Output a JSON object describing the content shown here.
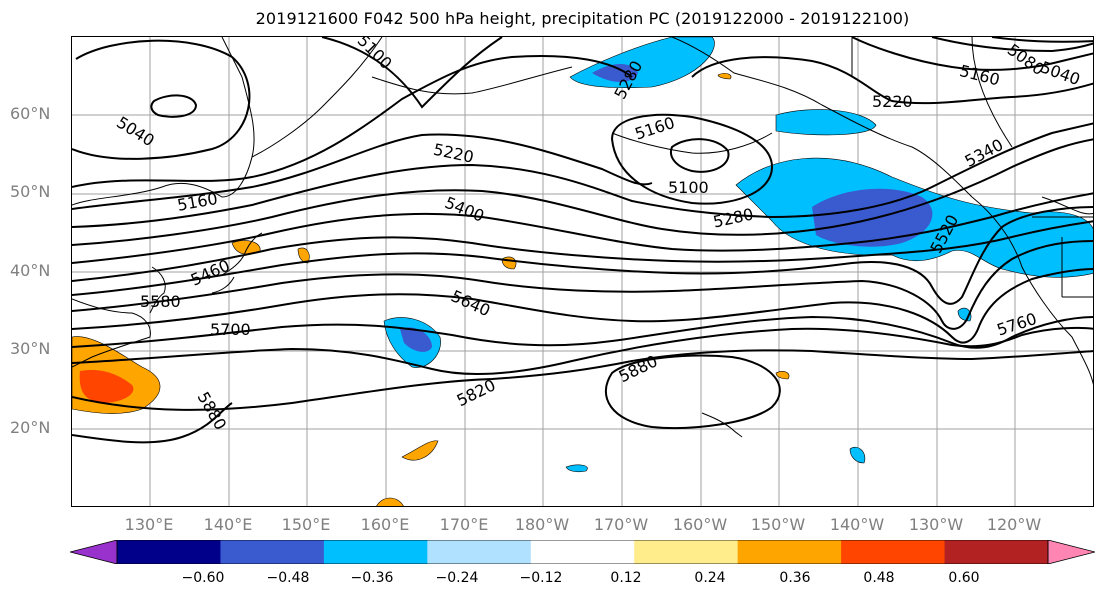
{
  "title": "2019121600 F042 500 hPa height, precipitation PC (2019122000 - 2019122100)",
  "lat_labels": [
    "60°N",
    "50°N",
    "40°N",
    "30°N",
    "20°N"
  ],
  "lon_labels": [
    "130°E",
    "140°E",
    "150°E",
    "160°E",
    "170°E",
    "180°W",
    "170°W",
    "160°W",
    "150°W",
    "140°W",
    "130°W",
    "120°W"
  ],
  "colorbar": {
    "tick_labels": [
      "−0.60",
      "−0.48",
      "−0.36",
      "−0.24",
      "−0.12",
      "0.12",
      "0.24",
      "0.36",
      "0.48",
      "0.60"
    ],
    "colors": [
      "#9932cc",
      "#00008b",
      "#3a5bd0",
      "#00bfff",
      "#b0e2ff",
      "#ffffff",
      "#ffec8b",
      "#ffa500",
      "#ff4500",
      "#b22222",
      "#ff85b3"
    ]
  },
  "contour_labels": [
    "5100",
    "5040",
    "5160",
    "5460",
    "5580",
    "5700",
    "5880",
    "5220",
    "5400",
    "5640",
    "5820",
    "5880",
    "5280",
    "5160",
    "5100",
    "5280",
    "5220",
    "5160",
    "5080",
    "5040",
    "5340",
    "5520",
    "5760",
    "5220"
  ],
  "colors": {
    "land_line": "#000000",
    "grid": "#a0a0a0",
    "contour": "#000000"
  }
}
